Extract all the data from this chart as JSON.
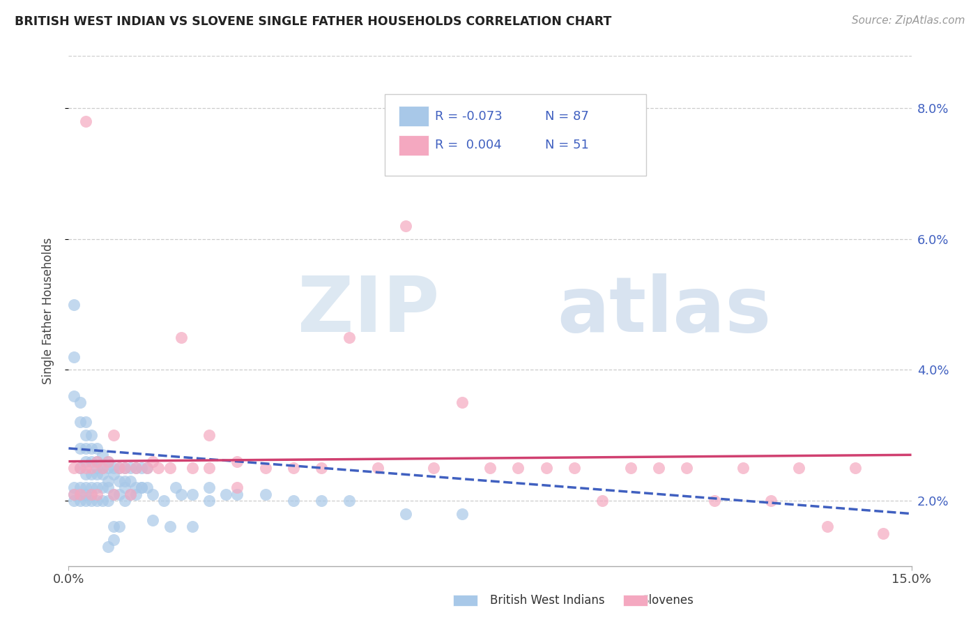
{
  "title": "BRITISH WEST INDIAN VS SLOVENE SINGLE FATHER HOUSEHOLDS CORRELATION CHART",
  "source": "Source: ZipAtlas.com",
  "ylabel": "Single Father Households",
  "xlim": [
    0.0,
    0.15
  ],
  "ylim": [
    0.01,
    0.088
  ],
  "yticks": [
    0.02,
    0.04,
    0.06,
    0.08
  ],
  "ytick_labels": [
    "2.0%",
    "4.0%",
    "6.0%",
    "8.0%"
  ],
  "xticks": [
    0.0,
    0.15
  ],
  "xtick_labels": [
    "0.0%",
    "15.0%"
  ],
  "color_blue": "#a8c8e8",
  "color_pink": "#f4a8c0",
  "color_blue_line": "#4060c0",
  "color_pink_line": "#d04070",
  "blue_trend_x0": 0.0,
  "blue_trend_y0": 0.028,
  "blue_trend_x1": 0.15,
  "blue_trend_y1": 0.018,
  "pink_trend_x0": 0.0,
  "pink_trend_y0": 0.026,
  "pink_trend_x1": 0.15,
  "pink_trend_y1": 0.027,
  "blue_scatter_x": [
    0.001,
    0.001,
    0.001,
    0.002,
    0.002,
    0.002,
    0.002,
    0.003,
    0.003,
    0.003,
    0.003,
    0.003,
    0.004,
    0.004,
    0.004,
    0.004,
    0.005,
    0.005,
    0.005,
    0.005,
    0.006,
    0.006,
    0.006,
    0.007,
    0.007,
    0.007,
    0.008,
    0.008,
    0.009,
    0.009,
    0.01,
    0.01,
    0.011,
    0.011,
    0.012,
    0.012,
    0.013,
    0.013,
    0.014,
    0.014,
    0.001,
    0.001,
    0.001,
    0.002,
    0.002,
    0.002,
    0.003,
    0.003,
    0.003,
    0.004,
    0.004,
    0.004,
    0.005,
    0.005,
    0.006,
    0.006,
    0.007,
    0.007,
    0.008,
    0.009,
    0.01,
    0.01,
    0.011,
    0.012,
    0.013,
    0.015,
    0.017,
    0.019,
    0.02,
    0.022,
    0.025,
    0.025,
    0.028,
    0.03,
    0.035,
    0.04,
    0.045,
    0.05,
    0.06,
    0.07,
    0.008,
    0.008,
    0.007,
    0.009,
    0.015,
    0.018,
    0.022
  ],
  "blue_scatter_y": [
    0.05,
    0.042,
    0.036,
    0.035,
    0.032,
    0.028,
    0.025,
    0.032,
    0.03,
    0.028,
    0.026,
    0.024,
    0.03,
    0.028,
    0.026,
    0.024,
    0.028,
    0.026,
    0.025,
    0.024,
    0.027,
    0.025,
    0.024,
    0.026,
    0.025,
    0.023,
    0.025,
    0.024,
    0.025,
    0.023,
    0.025,
    0.023,
    0.025,
    0.023,
    0.025,
    0.022,
    0.025,
    0.022,
    0.025,
    0.022,
    0.022,
    0.021,
    0.02,
    0.022,
    0.021,
    0.02,
    0.022,
    0.021,
    0.02,
    0.022,
    0.021,
    0.02,
    0.022,
    0.02,
    0.022,
    0.02,
    0.022,
    0.02,
    0.021,
    0.021,
    0.022,
    0.02,
    0.021,
    0.021,
    0.022,
    0.021,
    0.02,
    0.022,
    0.021,
    0.021,
    0.022,
    0.02,
    0.021,
    0.021,
    0.021,
    0.02,
    0.02,
    0.02,
    0.018,
    0.018,
    0.016,
    0.014,
    0.013,
    0.016,
    0.017,
    0.016,
    0.016
  ],
  "pink_scatter_x": [
    0.003,
    0.001,
    0.001,
    0.002,
    0.002,
    0.003,
    0.004,
    0.004,
    0.005,
    0.005,
    0.006,
    0.007,
    0.008,
    0.008,
    0.009,
    0.01,
    0.011,
    0.012,
    0.014,
    0.015,
    0.016,
    0.018,
    0.02,
    0.022,
    0.025,
    0.025,
    0.03,
    0.03,
    0.035,
    0.04,
    0.045,
    0.05,
    0.055,
    0.06,
    0.065,
    0.07,
    0.075,
    0.08,
    0.085,
    0.09,
    0.095,
    0.1,
    0.105,
    0.11,
    0.115,
    0.12,
    0.125,
    0.13,
    0.135,
    0.14,
    0.145
  ],
  "pink_scatter_y": [
    0.078,
    0.025,
    0.021,
    0.025,
    0.021,
    0.025,
    0.025,
    0.021,
    0.026,
    0.021,
    0.025,
    0.026,
    0.03,
    0.021,
    0.025,
    0.025,
    0.021,
    0.025,
    0.025,
    0.026,
    0.025,
    0.025,
    0.045,
    0.025,
    0.03,
    0.025,
    0.026,
    0.022,
    0.025,
    0.025,
    0.025,
    0.045,
    0.025,
    0.062,
    0.025,
    0.035,
    0.025,
    0.025,
    0.025,
    0.025,
    0.02,
    0.025,
    0.025,
    0.025,
    0.02,
    0.025,
    0.02,
    0.025,
    0.016,
    0.025,
    0.015
  ]
}
